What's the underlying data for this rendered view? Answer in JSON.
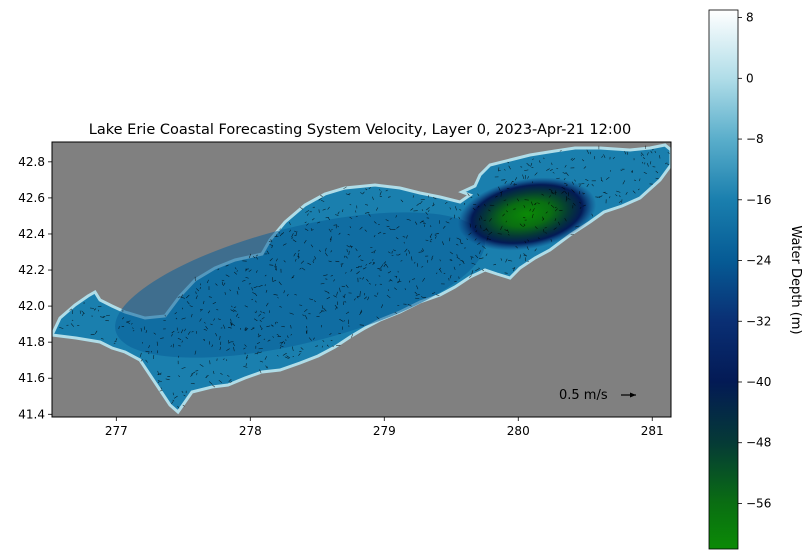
{
  "chart_data": {
    "type": "heatmap",
    "title": "Lake Erie Coastal Forecasting System Velocity, Layer 0, 2023-Apr-21 12:00",
    "xlabel": "",
    "ylabel": "",
    "xlim": [
      276.52,
      281.14
    ],
    "ylim": [
      41.385,
      42.91
    ],
    "x_ticks": [
      277,
      278,
      279,
      280,
      281
    ],
    "y_ticks": [
      41.4,
      41.6,
      41.8,
      42.0,
      42.2,
      42.4,
      42.6,
      42.8
    ],
    "x_tick_labels": [
      "277",
      "278",
      "279",
      "280",
      "281"
    ],
    "y_tick_labels": [
      "41.4",
      "41.6",
      "41.8",
      "42.0",
      "42.2",
      "42.4",
      "42.6",
      "42.8"
    ],
    "land_color": "#808080",
    "grid": false,
    "quiver_key": {
      "label": "0.5 m/s",
      "magnitude": 0.5
    },
    "colorbar": {
      "label": "Water Depth (m)",
      "range": [
        -62,
        9
      ],
      "ticks": [
        8,
        0,
        -8,
        -16,
        -24,
        -32,
        -40,
        -48,
        -56
      ],
      "tick_labels": [
        "8",
        "0",
        "−8",
        "−16",
        "−24",
        "−32",
        "−40",
        "−48",
        "−56"
      ],
      "colormap": "ocean-like",
      "stops": [
        {
          "value": 9,
          "color": "#ffffff"
        },
        {
          "value": 0,
          "color": "#b0dde8"
        },
        {
          "value": -8,
          "color": "#5aaecb"
        },
        {
          "value": -16,
          "color": "#1a7fae"
        },
        {
          "value": -24,
          "color": "#065b95"
        },
        {
          "value": -32,
          "color": "#0a2f74"
        },
        {
          "value": -40,
          "color": "#031a55"
        },
        {
          "value": -48,
          "color": "#053a36"
        },
        {
          "value": -56,
          "color": "#0a6e12"
        },
        {
          "value": -62,
          "color": "#0b8a06"
        }
      ]
    },
    "deep_basin": {
      "center_lon": 280.05,
      "center_lat": 42.53,
      "min_depth": -62
    }
  }
}
